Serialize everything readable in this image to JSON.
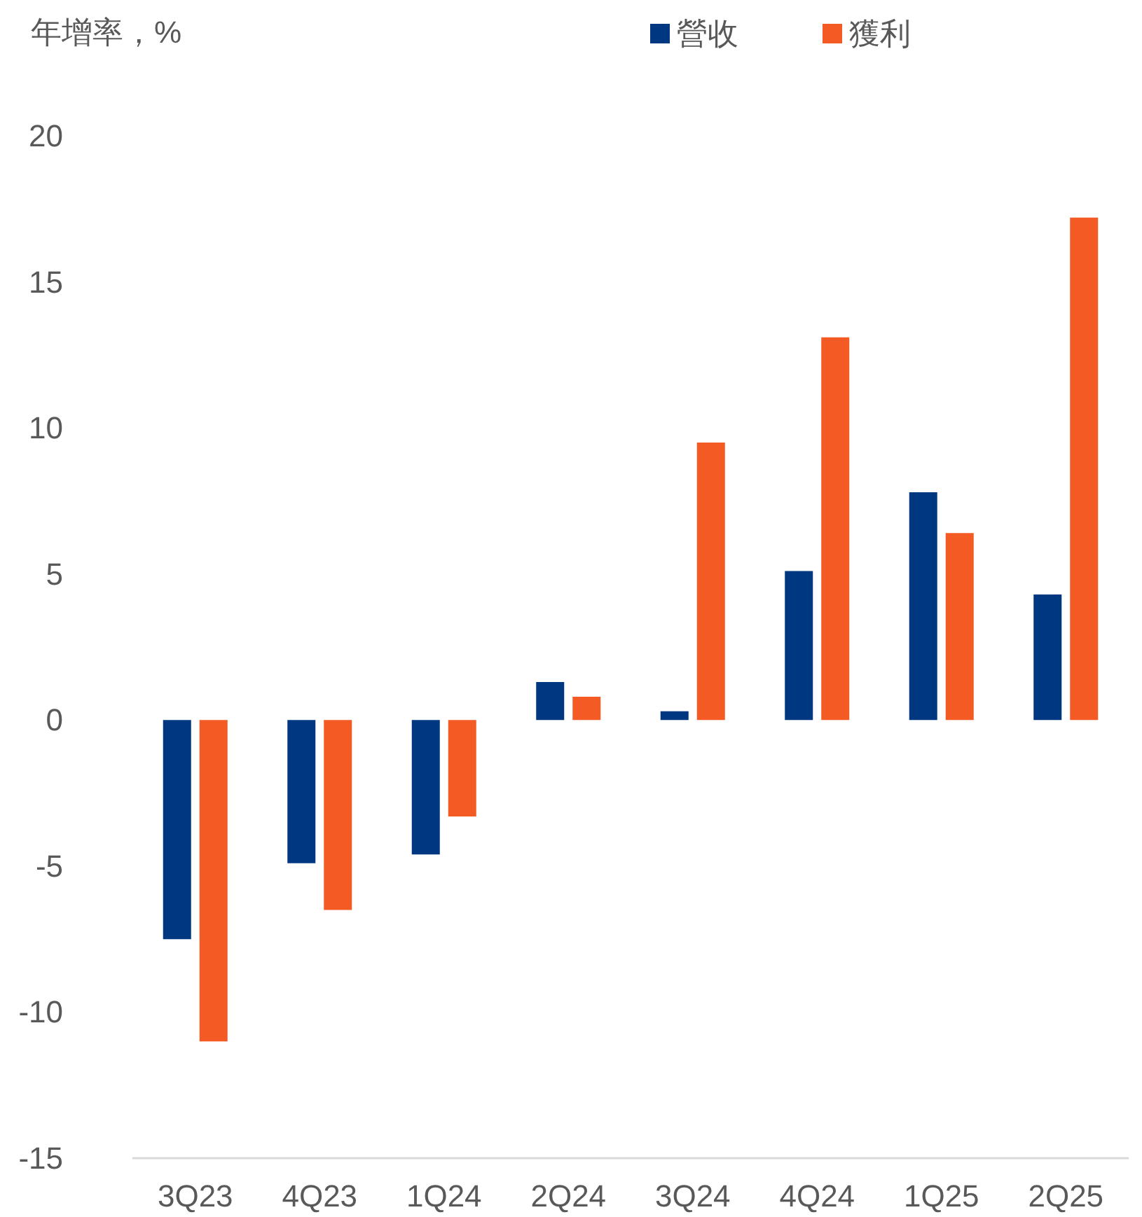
{
  "chart_data": {
    "type": "bar",
    "ylabel": "年增率，%",
    "categories": [
      "3Q23",
      "4Q23",
      "1Q24",
      "2Q24",
      "3Q24",
      "4Q24",
      "1Q25",
      "2Q25"
    ],
    "series": [
      {
        "name": "營收",
        "color": "#003781",
        "values": [
          -7.5,
          -4.9,
          -4.6,
          1.3,
          0.3,
          5.1,
          7.8,
          4.3
        ]
      },
      {
        "name": "獲利",
        "color": "#f45a24",
        "values": [
          -11.0,
          -6.5,
          -3.3,
          0.8,
          9.5,
          13.1,
          6.4,
          17.2
        ]
      }
    ],
    "ylim": [
      -15,
      20
    ],
    "yticks": [
      -15,
      -10,
      -5,
      0,
      5,
      10,
      15,
      20
    ],
    "grid": false,
    "legend": "top right"
  }
}
